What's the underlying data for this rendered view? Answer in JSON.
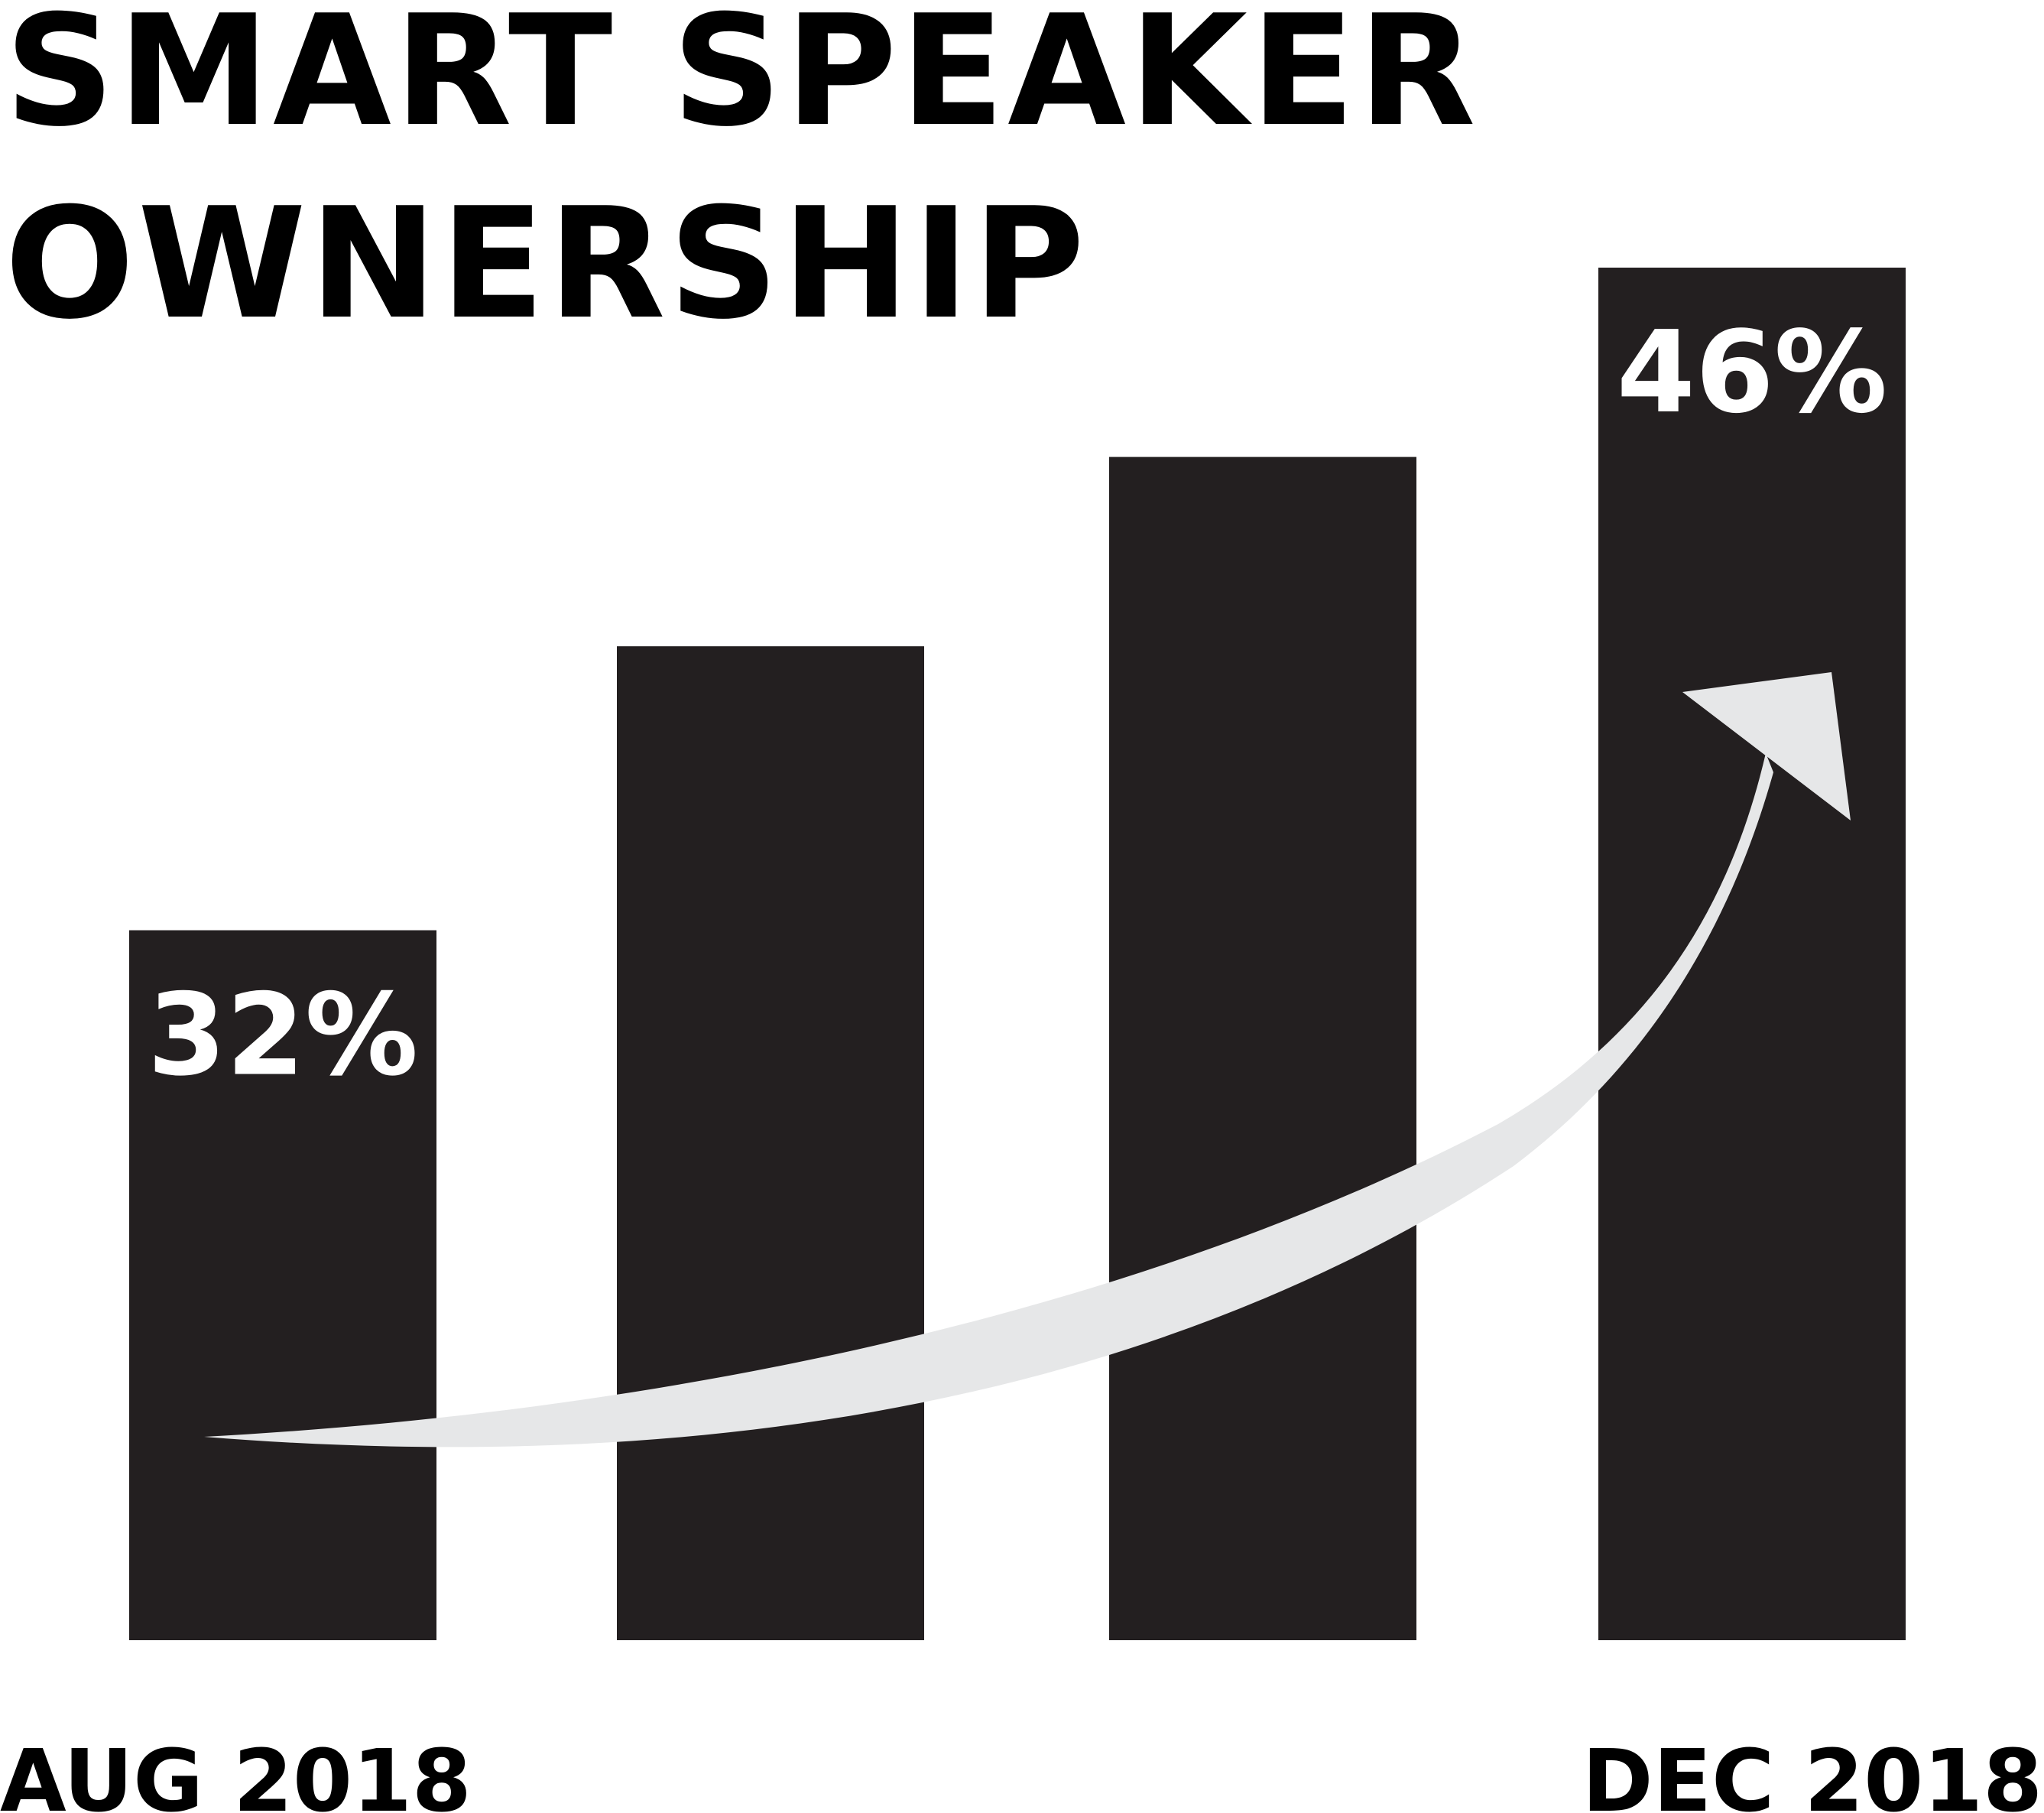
{
  "title": {
    "line1": "SMART SPEAKER",
    "line2": "OWNERSHIP"
  },
  "colors": {
    "bar": "#231f20",
    "arrow": "#e6e7e8",
    "text": "#000000",
    "label_on_bar": "#ffffff",
    "background": "#ffffff"
  },
  "chart_data": {
    "type": "bar",
    "title": "SMART SPEAKER OWNERSHIP",
    "categories": [
      "AUG 2018",
      "",
      "",
      "DEC 2018"
    ],
    "values": [
      32,
      38,
      42,
      46
    ],
    "data_labels": [
      "32%",
      "",
      "",
      "46%"
    ],
    "x_labels": {
      "start": "AUG 2018",
      "end": "DEC 2018"
    },
    "unit": "%",
    "ylim": [
      17,
      46
    ],
    "grid": false,
    "legend": "none",
    "trend_arrow": "upward curve from first bar to last bar"
  }
}
